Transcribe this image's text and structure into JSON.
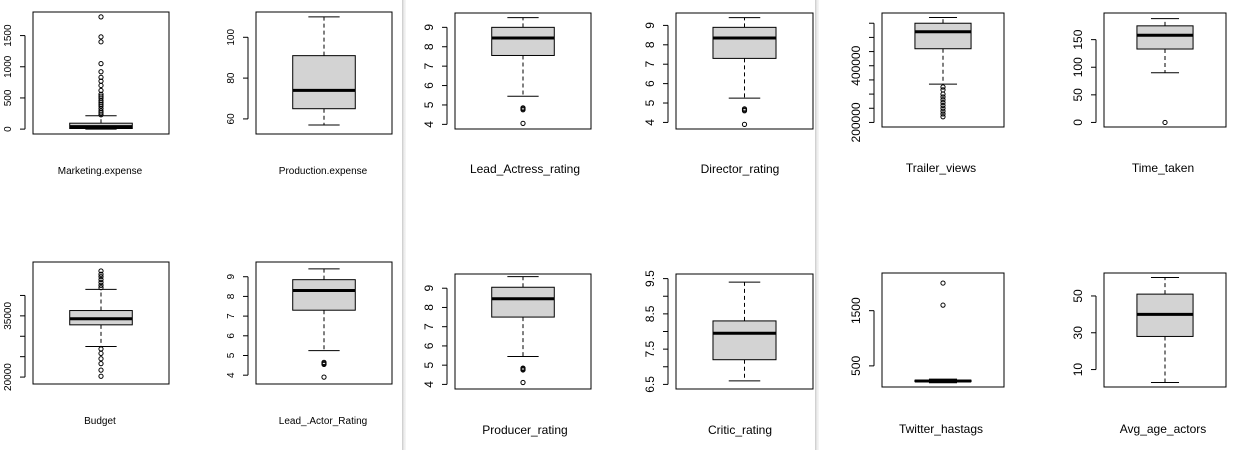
{
  "chart_data": [
    {
      "type": "box",
      "xlabel": "Marketing.expense",
      "ylim": [
        0,
        1800
      ],
      "ticks": [
        0,
        500,
        1000,
        1500
      ],
      "box": {
        "whisker_low": 0,
        "q1": 10,
        "median": 40,
        "q3": 95,
        "whisker_high": 215
      },
      "outliers": [
        230,
        260,
        290,
        330,
        370,
        400,
        430,
        460,
        500,
        530,
        560,
        620,
        700,
        770,
        830,
        920,
        1050,
        1400,
        1480,
        1800
      ]
    },
    {
      "type": "box",
      "xlabel": "Production.expense",
      "ylim": [
        55,
        110
      ],
      "ticks": [
        60,
        80,
        100
      ],
      "box": {
        "whisker_low": 57,
        "q1": 65,
        "median": 74,
        "q3": 91,
        "whisker_high": 110
      },
      "outliers": []
    },
    {
      "type": "box",
      "xlabel": "Budget",
      "ylim": [
        19500,
        47000
      ],
      "ticks": [
        20000,
        35000
      ],
      "minor_ticks": [
        25000,
        30000,
        40000
      ],
      "box": {
        "whisker_low": 27500,
        "q1": 32800,
        "median": 34300,
        "q3": 36300,
        "whisker_high": 41500
      },
      "outliers": [
        20200,
        21700,
        23300,
        24500,
        25800,
        26900,
        41900,
        42500,
        43200,
        43900,
        44600,
        45200,
        46000
      ]
    },
    {
      "type": "box",
      "xlabel": "Lead_.Actor_Rating",
      "ylim": [
        3.8,
        9.5
      ],
      "ticks": [
        4,
        5,
        6,
        7,
        8,
        9
      ],
      "box": {
        "whisker_low": 5.25,
        "q1": 7.3,
        "median": 8.3,
        "q3": 8.85,
        "whisker_high": 9.4
      },
      "outliers": [
        3.9,
        4.55,
        4.6,
        4.65
      ]
    },
    {
      "type": "box",
      "xlabel": "Lead_Actress_rating",
      "ylim": [
        4,
        9.5
      ],
      "ticks": [
        4,
        5,
        6,
        7,
        8,
        9
      ],
      "box": {
        "whisker_low": 5.45,
        "q1": 7.55,
        "median": 8.45,
        "q3": 9.0,
        "whisker_high": 9.5
      },
      "outliers": [
        4.05,
        4.75,
        4.8,
        4.85
      ]
    },
    {
      "type": "box",
      "xlabel": "Producer_rating",
      "ylim": [
        4,
        9.5
      ],
      "ticks": [
        4,
        5,
        6,
        7,
        8,
        9
      ],
      "box": {
        "whisker_low": 5.45,
        "q1": 7.5,
        "median": 8.45,
        "q3": 9.05,
        "whisker_high": 9.6
      },
      "outliers": [
        4.1,
        4.75,
        4.8,
        4.85
      ]
    },
    {
      "type": "box",
      "xlabel": "Director_rating",
      "ylim": [
        3.9,
        9.4
      ],
      "ticks": [
        4,
        5,
        6,
        7,
        8,
        9
      ],
      "box": {
        "whisker_low": 5.25,
        "q1": 7.3,
        "median": 8.35,
        "q3": 8.9,
        "whisker_high": 9.4
      },
      "outliers": [
        3.9,
        4.6,
        4.65,
        4.7
      ]
    },
    {
      "type": "box",
      "xlabel": "Critic_rating",
      "ylim": [
        6.5,
        9.5
      ],
      "ticks": [
        6.5,
        7.5,
        8.5,
        9.5
      ],
      "minor_ticks": [
        7,
        8,
        9
      ],
      "box": {
        "whisker_low": 6.6,
        "q1": 7.2,
        "median": 7.95,
        "q3": 8.3,
        "whisker_high": 9.4
      },
      "outliers": []
    },
    {
      "type": "box",
      "xlabel": "Trailer_views",
      "ylim": [
        200000,
        570000
      ],
      "ticks": [
        200000,
        400000
      ],
      "minor_ticks": [
        250000,
        300000,
        350000,
        450000,
        500000,
        550000
      ],
      "box": {
        "whisker_low": 335000,
        "q1": 460000,
        "median": 520000,
        "q3": 550000,
        "whisker_high": 570000
      },
      "outliers": [
        220000,
        230000,
        240000,
        250000,
        260000,
        270000,
        280000,
        290000,
        300000,
        315000,
        325000
      ]
    },
    {
      "type": "box",
      "xlabel": "Twitter_hastags",
      "ylim": [
        200,
        2100
      ],
      "ticks": [
        500,
        1500
      ],
      "box": {
        "whisker_low": 195,
        "q1": 215,
        "median": 225,
        "q3": 240,
        "whisker_high": 260
      },
      "outliers": [
        1600,
        2000
      ]
    },
    {
      "type": "box",
      "xlabel": "Time_taken",
      "ylim": [
        0,
        190
      ],
      "ticks": [
        0,
        50,
        100,
        150
      ],
      "box": {
        "whisker_low": 90,
        "q1": 133,
        "median": 158,
        "q3": 175,
        "whisker_high": 188
      },
      "outliers": [
        0
      ]
    },
    {
      "type": "box",
      "xlabel": "Avg_age_actors",
      "ylim": [
        3,
        60
      ],
      "ticks": [
        10,
        30,
        50
      ],
      "box": {
        "whisker_low": 3,
        "q1": 28,
        "median": 40,
        "q3": 51,
        "whisker_high": 60
      },
      "outliers": []
    }
  ]
}
